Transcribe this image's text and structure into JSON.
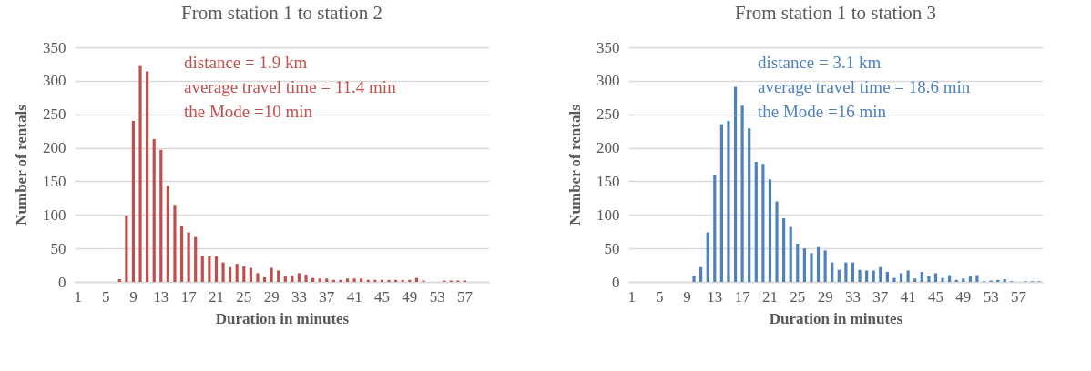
{
  "chart_data": [
    {
      "type": "bar",
      "title": "From station 1 to station 2",
      "xlabel": "Duration in minutes",
      "ylabel": "Number of rentals",
      "categories": [
        "1",
        null,
        null,
        null,
        "5",
        null,
        null,
        null,
        "9",
        null,
        null,
        null,
        "13",
        null,
        null,
        null,
        "17",
        null,
        null,
        null,
        "21",
        null,
        null,
        null,
        "25",
        null,
        null,
        null,
        "29",
        null,
        null,
        null,
        "33",
        null,
        null,
        null,
        "37",
        null,
        null,
        null,
        "41",
        null,
        null,
        null,
        "45",
        null,
        null,
        null,
        "49",
        null,
        null,
        null,
        "53",
        null,
        null,
        null,
        "57",
        null,
        null,
        null
      ],
      "series": [
        {
          "color": "#c0504d",
          "values": [
            0,
            0,
            0,
            0,
            0,
            0,
            4,
            99,
            240,
            322,
            314,
            213,
            197,
            143,
            115,
            84,
            74,
            67,
            39,
            38,
            38,
            29,
            22,
            27,
            23,
            21,
            13,
            7,
            21,
            17,
            8,
            9,
            13,
            11,
            6,
            5,
            5,
            3,
            3,
            5,
            5,
            5,
            3,
            3,
            3,
            3,
            3,
            3,
            3,
            6,
            2,
            0,
            0,
            2,
            2,
            2,
            2,
            0,
            0,
            0
          ]
        }
      ],
      "ylim": [
        0,
        350
      ],
      "yticks": [
        0,
        50,
        100,
        150,
        200,
        250,
        300,
        350
      ],
      "grid": "y",
      "annotations": [
        "distance = 1.9 km",
        "average travel time = 11.4 min",
        "the Mode =10 min"
      ]
    },
    {
      "type": "bar",
      "title": "From station 1 to station 3",
      "xlabel": "Duration in minutes",
      "ylabel": "Number of rentals",
      "categories": [
        "1",
        null,
        null,
        null,
        "5",
        null,
        null,
        null,
        "9",
        null,
        null,
        null,
        "13",
        null,
        null,
        null,
        "17",
        null,
        null,
        null,
        "21",
        null,
        null,
        null,
        "25",
        null,
        null,
        null,
        "29",
        null,
        null,
        null,
        "33",
        null,
        null,
        null,
        "37",
        null,
        null,
        null,
        "41",
        null,
        null,
        null,
        "45",
        null,
        null,
        null,
        "49",
        null,
        null,
        null,
        "53",
        null,
        null,
        null,
        "57",
        null,
        null,
        null
      ],
      "series": [
        {
          "color": "#4f81bd",
          "values": [
            0,
            0,
            0,
            0,
            0,
            0,
            0,
            0,
            0,
            9,
            22,
            74,
            160,
            235,
            240,
            291,
            263,
            229,
            179,
            176,
            153,
            120,
            95,
            82,
            57,
            50,
            43,
            52,
            47,
            29,
            18,
            29,
            29,
            18,
            17,
            17,
            22,
            15,
            6,
            13,
            17,
            5,
            15,
            9,
            13,
            6,
            10,
            3,
            5,
            8,
            10,
            1,
            2,
            3,
            4,
            1,
            0,
            1,
            1,
            1
          ]
        }
      ],
      "ylim": [
        0,
        350
      ],
      "yticks": [
        0,
        50,
        100,
        150,
        200,
        250,
        300,
        350
      ],
      "grid": "y",
      "annotations": [
        "distance = 3.1 km",
        "average travel time = 18.6 min",
        "the Mode =16 min"
      ]
    }
  ]
}
